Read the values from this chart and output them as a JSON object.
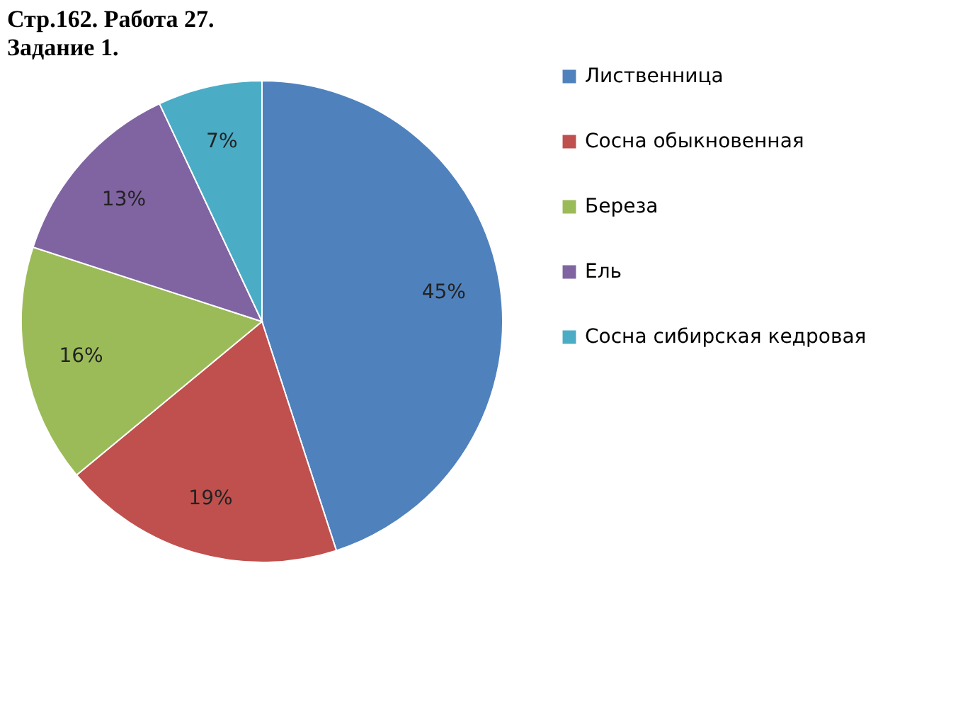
{
  "chart_data": {
    "type": "pie",
    "title": "Стр.162. Работа 27.",
    "subtitle": "Задание 1.",
    "categories": [
      "Лиственница",
      "Сосна обыкновенная",
      "Береза",
      "Ель",
      "Сосна сибирская кедровая"
    ],
    "values": [
      45,
      19,
      16,
      13,
      7
    ],
    "colors": [
      "#4f81bd",
      "#c0504d",
      "#9bbb59",
      "#8064a2",
      "#4bacc6"
    ],
    "value_labels": [
      "45%",
      "19%",
      "16%",
      "13%",
      "7%"
    ],
    "legend": "right"
  }
}
